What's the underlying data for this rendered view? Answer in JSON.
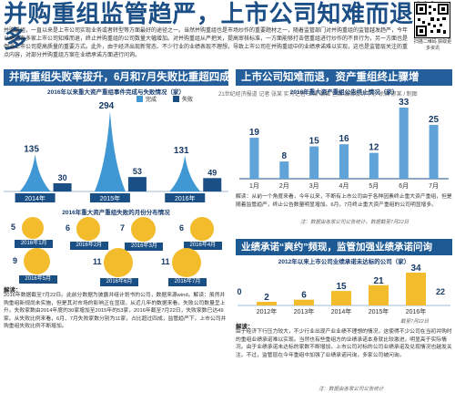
{
  "header": {
    "title": "并购重组监管趋严，上市公司知难而退增多",
    "intro": "并购重组，一直以来是上市公司实现业务或者转型等方面最好的途径之一。当然并购重组也是市场炒作的重要题材之一，随着监管部门对并购重组的监管越发趋严，今年以来已有多家上市公司知难而退，终止并购重组的公司数量大幅增加。对并购重组从严把关，提高审核标准，一方面能够打击借重组进行炒作的不良行为，另一方面也是倒逼上市公司提高质量的重要方式。此外，由于经济出现新常态、不少行业的业绩表现不理想，导致上市公司在并购重组中的业绩承诺难以实现，这也是监管层关注的重点内容，对部分并购重组方案在业绩承诺方面进行问询。",
    "byline": "21世纪经济报道 记者 张某 实习记者 王某 编辑 包某 媒体设计中心 徐某 廖某 / 制图",
    "qr_caption": "扫描二维码 获取更多资讯"
  },
  "left_banner": "并购重组失败率拔升，6月和7月失败比重超四成",
  "cone": {
    "caption": "2016年以来重大资产重组事件完成与失败情况（家）",
    "legend": [
      {
        "name": "完成",
        "color": "#3f97d3"
      },
      {
        "name": "失败",
        "color": "#1a4f86"
      }
    ],
    "chart_data": {
      "type": "bar",
      "categories": [
        "2014年",
        "2015年",
        "2016年"
      ],
      "series": [
        {
          "name": "完成",
          "values": [
            135,
            294,
            131
          ]
        },
        {
          "name": "失败",
          "values": [
            30,
            53,
            49
          ]
        }
      ],
      "ylim": [
        0,
        294
      ]
    }
  },
  "bubble": {
    "caption": "2016年重大资产重组失败的月份分布情况",
    "chart_data": {
      "type": "bar",
      "categories": [
        "2016年1月",
        "2016年2月",
        "2016年3月",
        "2016年4月",
        "2016年5月",
        "2016年6月",
        "2016年7月"
      ],
      "values": [
        5,
        6,
        7,
        6,
        9,
        11,
        11
      ]
    }
  },
  "left_note": {
    "head": "解读：",
    "body": "2016年数据截至7月22日。此前分数据为披露并组计划书的公司，数据来源wind。解读：虽然并购重组新规尚未实施，但是其对市场的影响正在显现。从近几年的数据来看，失败公司数量呈上升。失败家数由2014年度的30家增加至2015年的53家，2016年截至7月22日，失败家数已达49家。从失败比例来看，6月、7月失败家数分别为11家，占比超过四成，监管趋严下，上市公司并购重组失败比例不断增加。"
  },
  "right_top_banner": "上市公司知难而退，资产重组终止骤增",
  "monthly": {
    "caption": "2016年重大资产重组公告终止情况（家）",
    "chart_data": {
      "type": "bar",
      "categories": [
        "1月",
        "2月",
        "3月",
        "4月",
        "5月",
        "6月",
        "7月"
      ],
      "values": [
        19,
        8,
        15,
        16,
        12,
        33,
        25
      ]
    }
  },
  "monthly_note": "解读：从前一个角度来看，今年以来，不断有上市公司由于各种因素终止重大资产重组，但是随着监管趋严，终止公告数量明显增加。6月，7月终止重大资产重组的公司明显增多。",
  "monthly_source": "注：数据由各家公司公告统计。数据截至7月22日",
  "right_bottom_banner": "业绩承诺“爽约”频现，监管加强业绩承诺问询",
  "commit": {
    "caption": "2012年以来上市公司业绩承诺未达标的公司（家）",
    "chart_data": {
      "type": "bar",
      "categories": [
        "2012年",
        "2013年",
        "2014年",
        "2015年",
        "2016年"
      ],
      "values": [
        2,
        6,
        15,
        21,
        34
      ],
      "extra_labels": [
        0,
        22
      ]
    }
  },
  "commit_date": "截至7月22日",
  "commit_note": {
    "head": "解读：",
    "body": "由于经济下行压力较大，不少行业出现产业业绩不理想的情况，这使得不少公司在当初并购时的重组业绩承诺难以实现。当然也有些重组方的业绩承诺本身就比较激进，明显高于实际情况。由于业绩承诺未达标的家数不断增加，上市公司对标的公司业绩承诺及兑现情况也越发关注。不过，监管层在今年重组中加强了业绩承诺问询，多家公司被问询。"
  },
  "commit_source": "注：数据由各家公司公告统计"
}
